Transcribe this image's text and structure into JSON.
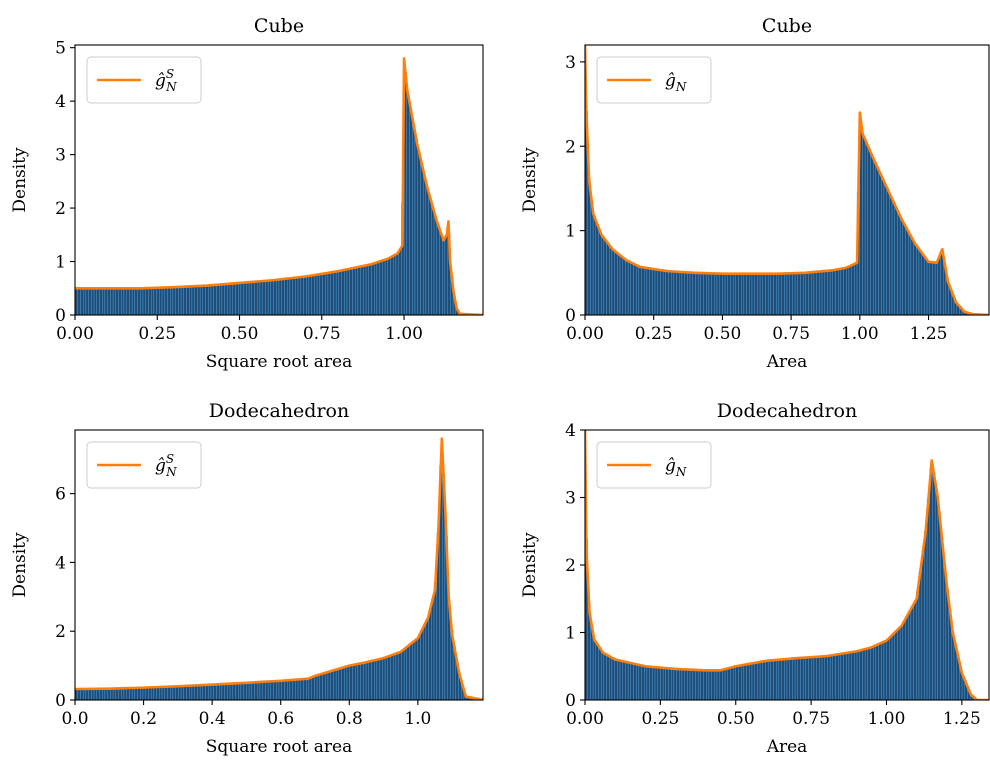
{
  "colors": {
    "histogram": "#1f4e79",
    "histogram_edge": "#5aa9e6",
    "density_line": "#ff7f0e"
  },
  "chart_data": [
    {
      "type": "area",
      "title": "Cube",
      "xlabel": "Square root area",
      "ylabel": "Density",
      "xlim": [
        0,
        1.24
      ],
      "ylim": [
        0,
        5.05
      ],
      "xticks": [
        0.0,
        0.25,
        0.5,
        0.75,
        1.0
      ],
      "xtick_labels": [
        "0.00",
        "0.25",
        "0.50",
        "0.75",
        "1.00"
      ],
      "yticks": [
        0,
        1,
        2,
        3,
        4,
        5
      ],
      "ytick_labels": [
        "0",
        "1",
        "2",
        "3",
        "4",
        "5"
      ],
      "legend": {
        "position": "top-left",
        "label": "ĝ",
        "sup": "S",
        "sub": "N"
      },
      "series": [
        {
          "x": [
            0.0,
            0.1,
            0.2,
            0.3,
            0.4,
            0.5,
            0.6,
            0.7,
            0.8,
            0.9,
            0.95,
            0.98,
            0.995,
            1.0,
            1.01,
            1.04,
            1.07,
            1.1,
            1.12,
            1.13,
            1.135,
            1.14,
            1.15,
            1.16,
            1.17,
            1.24
          ],
          "y": [
            0.5,
            0.5,
            0.5,
            0.52,
            0.55,
            0.6,
            0.65,
            0.72,
            0.82,
            0.95,
            1.05,
            1.15,
            1.3,
            4.8,
            4.2,
            3.2,
            2.4,
            1.75,
            1.4,
            1.5,
            1.75,
            1.0,
            0.45,
            0.12,
            0.02,
            0.0
          ]
        }
      ]
    },
    {
      "type": "area",
      "title": "Cube",
      "xlabel": "Area",
      "ylabel": "Density",
      "xlim": [
        0,
        1.47
      ],
      "ylim": [
        0,
        3.2
      ],
      "xticks": [
        0.0,
        0.25,
        0.5,
        0.75,
        1.0,
        1.25
      ],
      "xtick_labels": [
        "0.00",
        "0.25",
        "0.50",
        "0.75",
        "1.00",
        "1.25"
      ],
      "yticks": [
        0,
        1,
        2,
        3
      ],
      "ytick_labels": [
        "0",
        "1",
        "2",
        "3"
      ],
      "legend": {
        "position": "top-left",
        "label": "ĝ",
        "sup": "",
        "sub": "N"
      },
      "series": [
        {
          "x": [
            0.0,
            0.005,
            0.015,
            0.03,
            0.06,
            0.1,
            0.15,
            0.2,
            0.3,
            0.4,
            0.5,
            0.6,
            0.7,
            0.8,
            0.9,
            0.95,
            0.99,
            1.0,
            1.01,
            1.05,
            1.1,
            1.15,
            1.2,
            1.25,
            1.28,
            1.3,
            1.32,
            1.35,
            1.38,
            1.41,
            1.47
          ],
          "y": [
            3.2,
            2.4,
            1.6,
            1.2,
            0.95,
            0.78,
            0.65,
            0.57,
            0.52,
            0.5,
            0.49,
            0.49,
            0.49,
            0.5,
            0.53,
            0.56,
            0.62,
            2.4,
            2.15,
            1.85,
            1.5,
            1.15,
            0.85,
            0.63,
            0.62,
            0.78,
            0.4,
            0.15,
            0.04,
            0.01,
            0.0
          ]
        }
      ]
    },
    {
      "type": "area",
      "title": "Dodecahedron",
      "xlabel": "Square root area",
      "ylabel": "Density",
      "xlim": [
        0,
        1.19
      ],
      "ylim": [
        0,
        7.85
      ],
      "xticks": [
        0.0,
        0.2,
        0.4,
        0.6,
        0.8,
        1.0
      ],
      "xtick_labels": [
        "0.0",
        "0.2",
        "0.4",
        "0.6",
        "0.8",
        "1.0"
      ],
      "yticks": [
        0,
        2,
        4,
        6
      ],
      "ytick_labels": [
        "0",
        "2",
        "4",
        "6"
      ],
      "legend": {
        "position": "top-left",
        "label": "ĝ",
        "sup": "S",
        "sub": "N"
      },
      "series": [
        {
          "x": [
            0.0,
            0.1,
            0.2,
            0.3,
            0.4,
            0.5,
            0.6,
            0.68,
            0.7,
            0.75,
            0.8,
            0.85,
            0.9,
            0.95,
            1.0,
            1.03,
            1.05,
            1.06,
            1.07,
            1.08,
            1.09,
            1.1,
            1.12,
            1.14,
            1.19
          ],
          "y": [
            0.32,
            0.33,
            0.36,
            0.4,
            0.45,
            0.5,
            0.56,
            0.62,
            0.7,
            0.85,
            1.0,
            1.1,
            1.22,
            1.4,
            1.8,
            2.4,
            3.2,
            5.0,
            7.6,
            5.5,
            3.0,
            1.9,
            0.8,
            0.1,
            0.0
          ]
        }
      ]
    },
    {
      "type": "area",
      "title": "Dodecahedron",
      "xlabel": "Area",
      "ylabel": "Density",
      "xlim": [
        0,
        1.34
      ],
      "ylim": [
        0,
        4.0
      ],
      "xticks": [
        0.0,
        0.25,
        0.5,
        0.75,
        1.0,
        1.25
      ],
      "xtick_labels": [
        "0.00",
        "0.25",
        "0.50",
        "0.75",
        "1.00",
        "1.25"
      ],
      "yticks": [
        0,
        1,
        2,
        3,
        4
      ],
      "ytick_labels": [
        "0",
        "1",
        "2",
        "3",
        "4"
      ],
      "legend": {
        "position": "top-left",
        "label": "ĝ",
        "sup": "",
        "sub": "N"
      },
      "series": [
        {
          "x": [
            0.0,
            0.005,
            0.015,
            0.03,
            0.06,
            0.1,
            0.15,
            0.2,
            0.3,
            0.4,
            0.45,
            0.5,
            0.6,
            0.7,
            0.8,
            0.9,
            0.95,
            1.0,
            1.05,
            1.1,
            1.13,
            1.15,
            1.17,
            1.2,
            1.22,
            1.25,
            1.28,
            1.3,
            1.34
          ],
          "y": [
            4.0,
            2.2,
            1.3,
            0.9,
            0.7,
            0.6,
            0.55,
            0.5,
            0.46,
            0.44,
            0.44,
            0.5,
            0.58,
            0.62,
            0.65,
            0.72,
            0.78,
            0.88,
            1.1,
            1.5,
            2.5,
            3.55,
            3.0,
            1.7,
            1.0,
            0.4,
            0.08,
            0.0,
            0.0
          ]
        }
      ]
    }
  ]
}
